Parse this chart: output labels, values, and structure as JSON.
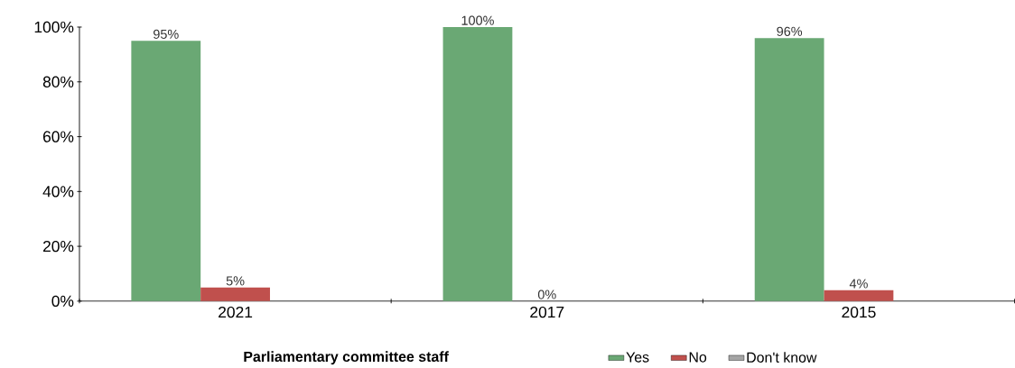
{
  "chart_data": {
    "type": "bar",
    "xlabel": "Parliamentary committee staff",
    "categories": [
      "2021",
      "2017",
      "2015"
    ],
    "series": [
      {
        "name": "Yes",
        "color": "#6aa874",
        "values": [
          95,
          100,
          96
        ],
        "value_labels": [
          "95%",
          "100%",
          "96%"
        ]
      },
      {
        "name": "No",
        "color": "#c0504d",
        "values": [
          5,
          0,
          4
        ],
        "value_labels": [
          "5%",
          "0%",
          "4%"
        ]
      },
      {
        "name": "Don't know",
        "color": "#a5a5a5",
        "values": [
          null,
          null,
          null
        ]
      }
    ],
    "ylim": [
      0,
      100
    ],
    "yticks": [
      {
        "value": 0,
        "label": "0%"
      },
      {
        "value": 20,
        "label": "20%"
      },
      {
        "value": 40,
        "label": "40%"
      },
      {
        "value": 60,
        "label": "60%"
      },
      {
        "value": 80,
        "label": "80%"
      },
      {
        "value": 100,
        "label": "100%"
      }
    ],
    "grid": false,
    "legend": "bottom"
  }
}
